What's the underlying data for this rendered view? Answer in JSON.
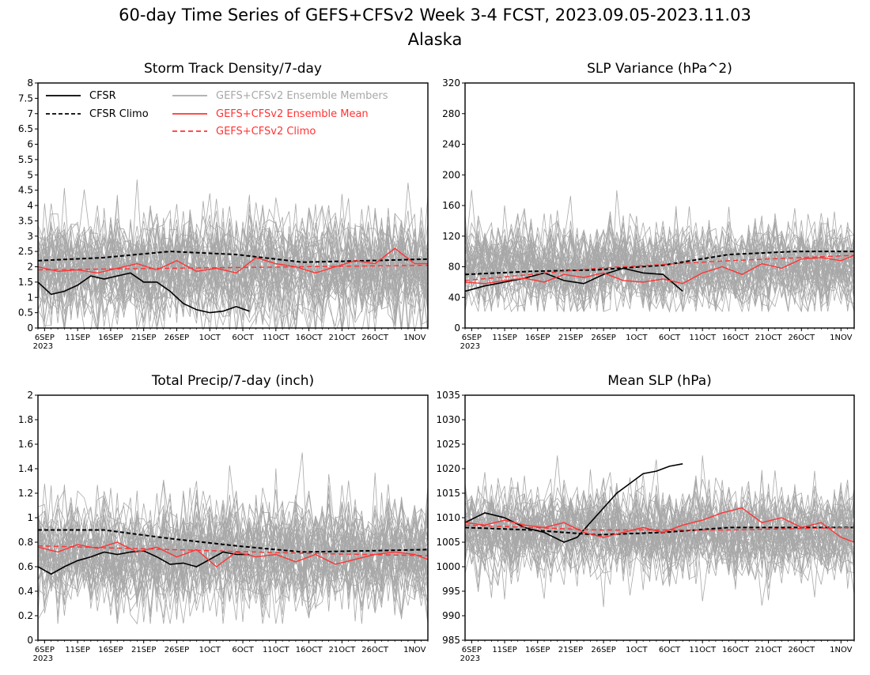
{
  "figure": {
    "title_line1": "60-day Time Series of GEFS+CFSv2 Week 3-4 FCST, 2023.09.05-2023.11.03",
    "title_line2": "Alaska"
  },
  "legend": {
    "cfsr": "CFSR",
    "cfsr_climo": "CFSR Climo",
    "members": "GEFS+CFSv2 Ensemble Members",
    "ens_mean": "GEFS+CFSv2 Ensemble Mean",
    "gefs_climo": "GEFS+CFSv2 Climo"
  },
  "colors": {
    "cfsr": "#000000",
    "members": "#a8a8a8",
    "ens_mean": "#ff3333",
    "gefs_climo": "#ff3333"
  },
  "x_axis": {
    "day_range": [
      0,
      59
    ],
    "ticks": [
      {
        "day": 1,
        "label": "6SEP"
      },
      {
        "day": 6,
        "label": "11SEP"
      },
      {
        "day": 11,
        "label": "16SEP"
      },
      {
        "day": 16,
        "label": "21SEP"
      },
      {
        "day": 21,
        "label": "26SEP"
      },
      {
        "day": 26,
        "label": "1OCT"
      },
      {
        "day": 31,
        "label": "6OCT"
      },
      {
        "day": 36,
        "label": "11OCT"
      },
      {
        "day": 41,
        "label": "16OCT"
      },
      {
        "day": 46,
        "label": "21OCT"
      },
      {
        "day": 51,
        "label": "26OCT"
      },
      {
        "day": 57,
        "label": "1NOV"
      }
    ],
    "year_label": "2023"
  },
  "chart_data": [
    {
      "type": "line",
      "title": "Storm Track Density/7-day",
      "ylim": [
        0,
        8
      ],
      "yticks": [
        "0",
        "0.5",
        "1",
        "1.5",
        "2",
        "2.5",
        "3",
        "3.5",
        "4",
        "4.5",
        "5",
        "5.5",
        "6",
        "6.5",
        "7",
        "7.5",
        "8"
      ],
      "has_legend": true,
      "ensemble_spread": {
        "low": 0.1,
        "high": 4.6,
        "center": 1.9,
        "sd": 0.9
      },
      "series": [
        {
          "name": "CFSR",
          "style": "solid-black",
          "x": [
            0,
            2,
            4,
            6,
            8,
            10,
            12,
            14,
            16,
            18,
            20,
            22,
            24,
            26,
            28,
            30,
            32
          ],
          "y": [
            1.5,
            1.1,
            1.2,
            1.4,
            1.7,
            1.6,
            1.7,
            1.8,
            1.5,
            1.5,
            1.2,
            0.8,
            0.6,
            0.5,
            0.55,
            0.7,
            0.55
          ]
        },
        {
          "name": "CFSR Climo",
          "style": "dashed-black",
          "x": [
            0,
            10,
            20,
            30,
            40,
            50,
            59
          ],
          "y": [
            2.2,
            2.3,
            2.5,
            2.4,
            2.15,
            2.2,
            2.25
          ]
        },
        {
          "name": "GEFS+CFSv2 Ensemble Mean",
          "style": "solid-red",
          "x": [
            0,
            3,
            6,
            9,
            12,
            15,
            18,
            21,
            24,
            27,
            30,
            33,
            36,
            39,
            42,
            45,
            48,
            51,
            54,
            57,
            59
          ],
          "y": [
            2.0,
            1.85,
            1.9,
            1.8,
            1.95,
            2.1,
            1.9,
            2.2,
            1.85,
            1.95,
            1.8,
            2.3,
            2.1,
            2.0,
            1.8,
            2.0,
            2.2,
            2.1,
            2.6,
            2.1,
            2.1
          ]
        },
        {
          "name": "GEFS+CFSv2 Climo",
          "style": "dashed-red",
          "x": [
            0,
            20,
            40,
            59
          ],
          "y": [
            1.9,
            1.95,
            2.0,
            2.05
          ]
        }
      ]
    },
    {
      "type": "line",
      "title": "SLP Variance (hPa^2)",
      "ylim": [
        0,
        320
      ],
      "yticks": [
        "0",
        "40",
        "80",
        "120",
        "160",
        "200",
        "240",
        "280",
        "320"
      ],
      "has_legend": false,
      "ensemble_spread": {
        "low": 30,
        "high": 190,
        "center": 80,
        "sd": 28
      },
      "series": [
        {
          "name": "CFSR",
          "style": "solid-black",
          "x": [
            0,
            3,
            6,
            9,
            12,
            15,
            18,
            21,
            24,
            27,
            30,
            33
          ],
          "y": [
            48,
            55,
            60,
            65,
            72,
            62,
            58,
            70,
            78,
            72,
            70,
            48
          ]
        },
        {
          "name": "CFSR Climo",
          "style": "dashed-black",
          "x": [
            0,
            10,
            20,
            30,
            40,
            50,
            59
          ],
          "y": [
            70,
            74,
            76,
            82,
            96,
            100,
            100
          ]
        },
        {
          "name": "GEFS+CFSv2 Ensemble Mean",
          "style": "solid-red",
          "x": [
            0,
            3,
            6,
            9,
            12,
            15,
            18,
            21,
            24,
            27,
            30,
            33,
            36,
            39,
            42,
            45,
            48,
            51,
            54,
            57,
            59
          ],
          "y": [
            60,
            58,
            62,
            65,
            60,
            70,
            66,
            72,
            62,
            60,
            64,
            58,
            72,
            80,
            70,
            84,
            78,
            90,
            92,
            88,
            95
          ]
        },
        {
          "name": "GEFS+CFSv2 Climo",
          "style": "dashed-red",
          "x": [
            0,
            20,
            40,
            59
          ],
          "y": [
            62,
            78,
            88,
            95
          ]
        }
      ]
    },
    {
      "type": "line",
      "title": "Total Precip/7-day (inch)",
      "ylim": [
        0,
        2
      ],
      "yticks": [
        "0",
        "0.2",
        "0.4",
        "0.6",
        "0.8",
        "1",
        "1.2",
        "1.4",
        "1.6",
        "1.8",
        "2"
      ],
      "has_legend": false,
      "ensemble_spread": {
        "low": 0.2,
        "high": 1.4,
        "center": 0.7,
        "sd": 0.22
      },
      "series": [
        {
          "name": "CFSR",
          "style": "solid-black",
          "x": [
            0,
            2,
            4,
            6,
            8,
            10,
            12,
            14,
            16,
            18,
            20,
            22,
            24,
            26,
            28,
            30,
            32
          ],
          "y": [
            0.6,
            0.54,
            0.6,
            0.65,
            0.68,
            0.72,
            0.7,
            0.72,
            0.73,
            0.68,
            0.62,
            0.63,
            0.6,
            0.66,
            0.72,
            0.7,
            0.7
          ]
        },
        {
          "name": "CFSR Climo",
          "style": "dashed-black",
          "x": [
            0,
            10,
            20,
            30,
            40,
            50,
            59
          ],
          "y": [
            0.9,
            0.9,
            0.83,
            0.77,
            0.72,
            0.73,
            0.74
          ]
        },
        {
          "name": "GEFS+CFSv2 Ensemble Mean",
          "style": "solid-red",
          "x": [
            0,
            3,
            6,
            9,
            12,
            15,
            18,
            21,
            24,
            27,
            30,
            33,
            36,
            39,
            42,
            45,
            48,
            51,
            54,
            57,
            59
          ],
          "y": [
            0.76,
            0.72,
            0.78,
            0.75,
            0.8,
            0.72,
            0.76,
            0.68,
            0.74,
            0.6,
            0.72,
            0.68,
            0.7,
            0.64,
            0.7,
            0.62,
            0.66,
            0.7,
            0.72,
            0.7,
            0.66
          ]
        },
        {
          "name": "GEFS+CFSv2 Climo",
          "style": "dashed-red",
          "x": [
            0,
            20,
            40,
            59
          ],
          "y": [
            0.77,
            0.74,
            0.71,
            0.69
          ]
        }
      ]
    },
    {
      "type": "line",
      "title": "Mean SLP (hPa)",
      "ylim": [
        985,
        1035
      ],
      "yticks": [
        "985",
        "990",
        "995",
        "1000",
        "1005",
        "1010",
        "1015",
        "1020",
        "1025",
        "1030",
        "1035"
      ],
      "has_legend": false,
      "ensemble_spread": {
        "low": 993,
        "high": 1020,
        "center": 1007,
        "sd": 4.5
      },
      "series": [
        {
          "name": "CFSR",
          "style": "solid-black",
          "x": [
            0,
            3,
            6,
            9,
            12,
            15,
            17,
            19,
            21,
            23,
            25,
            27,
            29,
            31,
            33
          ],
          "y": [
            1009,
            1011,
            1010,
            1008,
            1007,
            1005,
            1006,
            1009,
            1012,
            1015,
            1017,
            1019,
            1019.5,
            1020.5,
            1021
          ]
        },
        {
          "name": "CFSR Climo",
          "style": "dashed-black",
          "x": [
            0,
            10,
            20,
            30,
            40,
            50,
            59
          ],
          "y": [
            1008,
            1007.5,
            1006.5,
            1007,
            1008,
            1008,
            1008
          ]
        },
        {
          "name": "GEFS+CFSv2 Ensemble Mean",
          "style": "solid-red",
          "x": [
            0,
            3,
            6,
            9,
            12,
            15,
            18,
            21,
            24,
            27,
            30,
            33,
            36,
            39,
            42,
            45,
            48,
            51,
            54,
            57,
            59
          ],
          "y": [
            1009,
            1008.5,
            1009.5,
            1008.5,
            1008,
            1009,
            1007,
            1006,
            1007,
            1008,
            1007,
            1008.5,
            1009.5,
            1011,
            1012,
            1009,
            1010,
            1008,
            1009,
            1006,
            1005
          ]
        },
        {
          "name": "GEFS+CFSv2 Climo",
          "style": "dashed-red",
          "x": [
            0,
            20,
            40,
            59
          ],
          "y": [
            1008.5,
            1007.5,
            1007.5,
            1008
          ]
        }
      ]
    }
  ]
}
